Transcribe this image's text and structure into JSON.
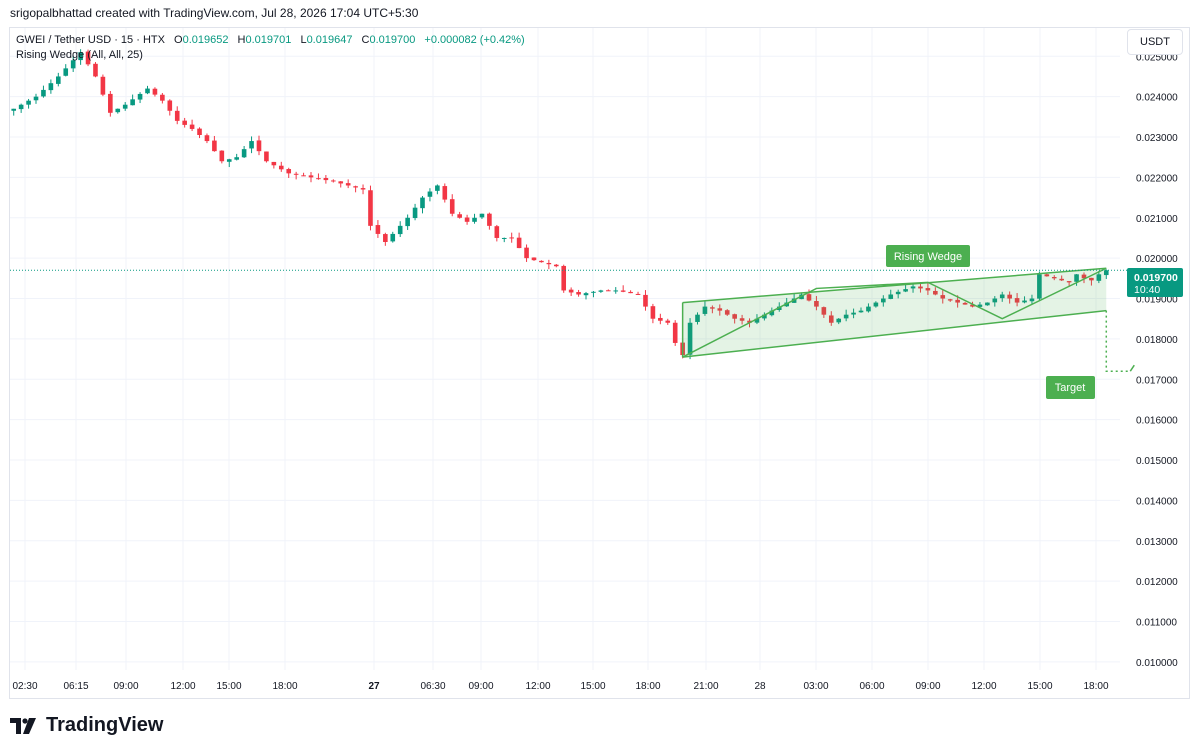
{
  "header": {
    "credit": "srigopalbhattad created with TradingView.com, Jul 28, 2026 17:04 UTC+5:30"
  },
  "legend": {
    "symbol": "GWEI / Tether USD · 15 · HTX",
    "o_label": "O",
    "o_value": "0.019652",
    "h_label": "H",
    "h_value": "0.019701",
    "l_label": "L",
    "l_value": "0.019647",
    "c_label": "C",
    "c_value": "0.019700",
    "change": "+0.000082 (+0.42%)",
    "indicator": "Rising Wedge (All, All, 25)"
  },
  "currency_button": "USDT",
  "price_tag": {
    "price": "0.019700",
    "countdown": "10:40"
  },
  "footer": {
    "brand": "TradingView"
  },
  "colors": {
    "up": "#089981",
    "down": "#f23645",
    "pattern": "#4caf50",
    "grid": "#f0f3fa"
  },
  "chart_data": {
    "type": "candlestick",
    "y_ticks": [
      "0.010000",
      "0.011000",
      "0.012000",
      "0.013000",
      "0.014000",
      "0.015000",
      "0.016000",
      "0.017000",
      "0.018000",
      "0.019000",
      "0.020000",
      "0.021000",
      "0.022000",
      "0.023000",
      "0.024000",
      "0.025000"
    ],
    "ylim": [
      0.0098,
      0.0257
    ],
    "x_ticks": [
      {
        "label": "02:30",
        "bold": false
      },
      {
        "label": "06:15",
        "bold": false
      },
      {
        "label": "09:00",
        "bold": false
      },
      {
        "label": "12:00",
        "bold": false
      },
      {
        "label": "15:00",
        "bold": false
      },
      {
        "label": "18:00",
        "bold": false
      },
      {
        "label": "27",
        "bold": true
      },
      {
        "label": "06:30",
        "bold": false
      },
      {
        "label": "09:00",
        "bold": false
      },
      {
        "label": "12:00",
        "bold": false
      },
      {
        "label": "15:00",
        "bold": false
      },
      {
        "label": "18:00",
        "bold": false
      },
      {
        "label": "21:00",
        "bold": false
      },
      {
        "label": "28",
        "bold": false
      },
      {
        "label": "03:00",
        "bold": false
      },
      {
        "label": "06:00",
        "bold": false
      },
      {
        "label": "09:00",
        "bold": false
      },
      {
        "label": "12:00",
        "bold": false
      },
      {
        "label": "15:00",
        "bold": false
      },
      {
        "label": "18:00",
        "bold": false
      }
    ],
    "close_path": [
      [
        0,
        0.0237
      ],
      [
        3,
        0.024
      ],
      [
        6,
        0.0245
      ],
      [
        9,
        0.0251
      ],
      [
        11,
        0.0245
      ],
      [
        13,
        0.0236
      ],
      [
        15,
        0.0238
      ],
      [
        18,
        0.0242
      ],
      [
        20,
        0.0239
      ],
      [
        22,
        0.0234
      ],
      [
        24,
        0.0232
      ],
      [
        26,
        0.0229
      ],
      [
        28,
        0.0224
      ],
      [
        30,
        0.0225
      ],
      [
        32,
        0.0229
      ],
      [
        34,
        0.0224
      ],
      [
        37,
        0.0221
      ],
      [
        40,
        0.022
      ],
      [
        43,
        0.0219
      ],
      [
        45,
        0.0218
      ],
      [
        47,
        0.0217
      ],
      [
        48,
        0.0208
      ],
      [
        50,
        0.0204
      ],
      [
        53,
        0.021
      ],
      [
        55,
        0.0215
      ],
      [
        57,
        0.0218
      ],
      [
        59,
        0.0211
      ],
      [
        61,
        0.0209
      ],
      [
        63,
        0.0211
      ],
      [
        65,
        0.0205
      ],
      [
        67,
        0.0205
      ],
      [
        69,
        0.02
      ],
      [
        71,
        0.0199
      ],
      [
        73,
        0.0198
      ],
      [
        74,
        0.0192
      ],
      [
        76,
        0.0191
      ],
      [
        79,
        0.0192
      ],
      [
        81,
        0.0192
      ],
      [
        84,
        0.0191
      ],
      [
        86,
        0.0185
      ],
      [
        88,
        0.0184
      ],
      [
        89,
        0.0179
      ],
      [
        90,
        0.0176
      ],
      [
        91,
        0.0184
      ],
      [
        93,
        0.0188
      ],
      [
        95,
        0.0187
      ],
      [
        97,
        0.0185
      ],
      [
        99,
        0.0184
      ],
      [
        101,
        0.0186
      ],
      [
        104,
        0.0189
      ],
      [
        106,
        0.0191
      ],
      [
        108,
        0.0188
      ],
      [
        110,
        0.0184
      ],
      [
        112,
        0.0186
      ],
      [
        114,
        0.0187
      ],
      [
        116,
        0.0189
      ],
      [
        118,
        0.0191
      ],
      [
        121,
        0.0193
      ],
      [
        123,
        0.0192
      ],
      [
        125,
        0.019
      ],
      [
        127,
        0.0189
      ],
      [
        129,
        0.0188
      ],
      [
        131,
        0.0189
      ],
      [
        133,
        0.0191
      ],
      [
        135,
        0.0189
      ],
      [
        137,
        0.019
      ],
      [
        138,
        0.0196
      ],
      [
        140,
        0.0195
      ],
      [
        142,
        0.0194
      ],
      [
        143,
        0.0196
      ],
      [
        144,
        0.0195
      ],
      [
        145,
        0.01945
      ],
      [
        146,
        0.0196
      ],
      [
        147,
        0.0197
      ]
    ],
    "last_close": 0.0197,
    "pattern": {
      "name": "Rising Wedge",
      "upper": [
        [
          90,
          0.0189
        ],
        [
          147,
          0.01975
        ]
      ],
      "lower": [
        [
          90,
          0.01755
        ],
        [
          147,
          0.0187
        ]
      ],
      "zigzag": [
        [
          90,
          0.01755
        ],
        [
          108,
          0.01925
        ],
        [
          123,
          0.0194
        ],
        [
          133,
          0.0185
        ],
        [
          147,
          0.01975
        ]
      ],
      "label": "Rising Wedge",
      "target_label": "Target",
      "target_price": 0.0172
    }
  }
}
